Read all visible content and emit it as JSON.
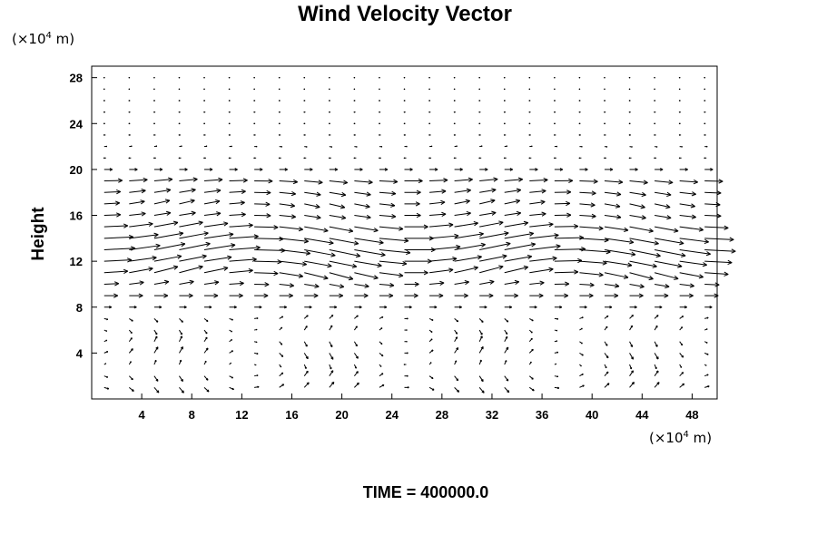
{
  "chart_data": {
    "type": "vector",
    "title": "Wind Velocity Vector",
    "ylabel": "Height",
    "xlabel": "",
    "x_unit": {
      "prefix": "(×10",
      "exponent": "4",
      "suffix": " m)"
    },
    "y_unit": {
      "prefix": "(×10",
      "exponent": "4",
      "suffix": " m)"
    },
    "xlim": [
      0,
      50
    ],
    "ylim": [
      0,
      29
    ],
    "x_ticks": [
      "4",
      "8",
      "12",
      "16",
      "20",
      "24",
      "28",
      "32",
      "36",
      "40",
      "44",
      "48"
    ],
    "y_ticks": [
      "4",
      "8",
      "12",
      "16",
      "20",
      "24",
      "28"
    ],
    "grid": false,
    "footer": "TIME = 400000.0",
    "field": {
      "x_step": 2,
      "y_step": 1,
      "layers": [
        {
          "y": 1,
          "u": 0.5,
          "v": -0.6
        },
        {
          "y": 2,
          "u": 0.4,
          "v": -0.6
        },
        {
          "y": 3,
          "u": 0.2,
          "v": 0.5
        },
        {
          "y": 4,
          "u": 0.4,
          "v": 0.7
        },
        {
          "y": 5,
          "u": 0.3,
          "v": 0.6
        },
        {
          "y": 6,
          "u": 0.3,
          "v": -0.5
        },
        {
          "y": 7,
          "u": 0.4,
          "v": -0.4
        },
        {
          "y": 8,
          "u": 0.8,
          "v": 0.0
        },
        {
          "y": 9,
          "u": 1.5,
          "v": 0.0
        },
        {
          "y": 10,
          "u": 1.6,
          "v": 0.3
        },
        {
          "y": 11,
          "u": 2.6,
          "v": 0.7
        },
        {
          "y": 12,
          "u": 3.0,
          "v": 0.6
        },
        {
          "y": 13,
          "u": 3.4,
          "v": 0.7
        },
        {
          "y": 14,
          "u": 3.2,
          "v": 0.6
        },
        {
          "y": 15,
          "u": 2.6,
          "v": 0.5
        },
        {
          "y": 16,
          "u": 1.8,
          "v": 0.3
        },
        {
          "y": 17,
          "u": 1.7,
          "v": 0.4
        },
        {
          "y": 18,
          "u": 1.8,
          "v": 0.3
        },
        {
          "y": 19,
          "u": 2.0,
          "v": 0.2
        },
        {
          "y": 20,
          "u": 0.9,
          "v": 0.0
        },
        {
          "y": 21,
          "u": 0.2,
          "v": 0.0
        },
        {
          "y": 22,
          "u": 0.3,
          "v": 0.05
        },
        {
          "y": 23,
          "u": 0.15,
          "v": 0.0
        },
        {
          "y": 24,
          "u": 0.1,
          "v": 0.0
        },
        {
          "y": 25,
          "u": 0.12,
          "v": 0.0
        },
        {
          "y": 26,
          "u": 0.1,
          "v": 0.0
        },
        {
          "y": 27,
          "u": 0.05,
          "v": 0.0
        },
        {
          "y": 28,
          "u": 0.05,
          "v": 0.0
        }
      ]
    }
  }
}
